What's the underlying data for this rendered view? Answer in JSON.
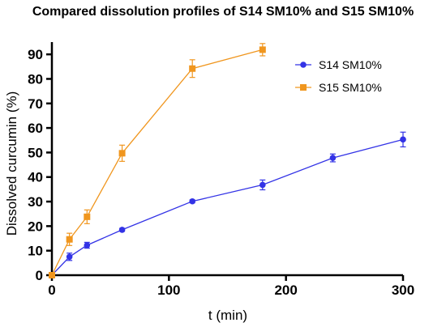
{
  "chart_data": {
    "type": "line",
    "title": "Compared dissolution profiles of S14 SM10% and S15 SM10%",
    "xlabel": "t (min)",
    "ylabel": "Dissolved curcumin (%)",
    "xlim": [
      0,
      300
    ],
    "ylim": [
      0,
      95
    ],
    "xticks": [
      0,
      100,
      200,
      300
    ],
    "yticks": [
      0,
      10,
      20,
      30,
      40,
      50,
      60,
      70,
      80,
      90
    ],
    "grid": false,
    "legend_position": "top-right",
    "series": [
      {
        "name": "S14 SM10%",
        "color": "#3333e6",
        "marker": "circle",
        "x": [
          0,
          15,
          30,
          60,
          120,
          180,
          240,
          300
        ],
        "y": [
          0,
          7.5,
          12.2,
          18.5,
          30.1,
          36.8,
          47.8,
          55.3
        ],
        "err": [
          0,
          1.5,
          1.2,
          0.6,
          0.6,
          2.0,
          1.6,
          3.0
        ]
      },
      {
        "name": "S15 SM10%",
        "color": "#f0961e",
        "marker": "square",
        "x": [
          0,
          15,
          30,
          60,
          120,
          180
        ],
        "y": [
          0,
          14.6,
          23.8,
          49.7,
          84.2,
          91.9
        ],
        "err": [
          0,
          2.5,
          2.8,
          3.3,
          3.6,
          2.5
        ]
      }
    ]
  }
}
